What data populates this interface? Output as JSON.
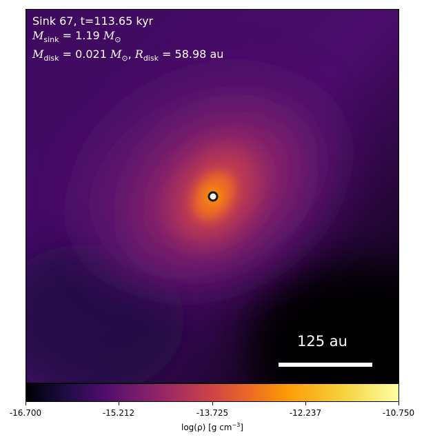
{
  "annotation": {
    "sink_line": "Sink 67, t=113.65 kyr",
    "mass_label": "M",
    "mass_sub": "sink",
    "mass_value": " = 1.19 ",
    "mass_unit": "M",
    "mass_unit_sub": "⊙",
    "disk_mass_label": "M",
    "disk_mass_sub": "disk",
    "disk_mass_value": " = 0.021 ",
    "disk_mass_unit": "M",
    "disk_mass_unit_sub": "⊙",
    "sep": ", ",
    "disk_radius_label": "R",
    "disk_radius_sub": "disk",
    "disk_radius_value": " = 58.98 au"
  },
  "scale_bar": {
    "label": "125 au"
  },
  "colorbar": {
    "ticks": [
      "-16.700",
      "-15.212",
      "-13.725",
      "-12.237",
      "-10.750"
    ],
    "label_prefix": "log(ρ) [g cm",
    "label_sup": "−3",
    "label_suffix": "]"
  },
  "colors": {
    "colormap": "inferno",
    "sink_ring": "#1a1a1a"
  }
}
